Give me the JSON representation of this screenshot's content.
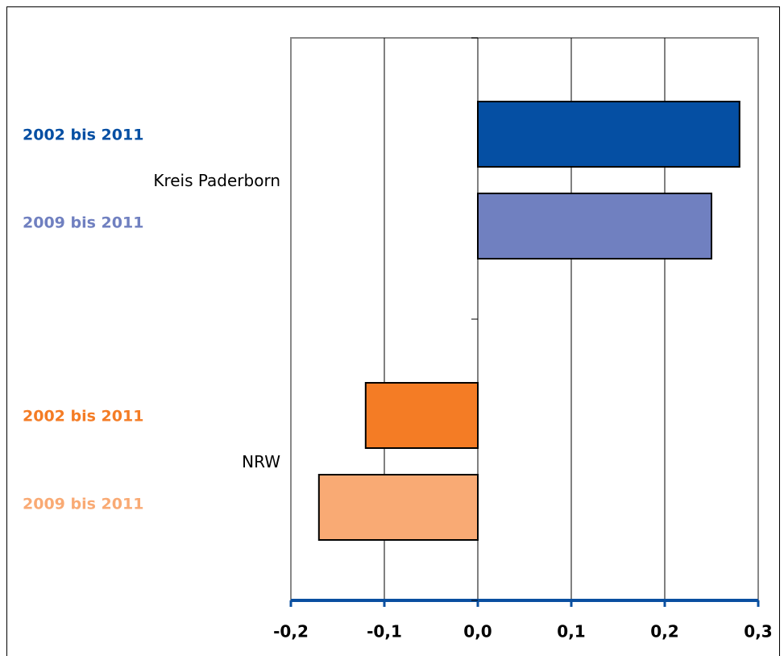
{
  "chart_data": {
    "type": "hbar",
    "groups": [
      {
        "name": "Kreis Paderborn",
        "bars": [
          {
            "label": "2002 bis 2011",
            "value": 0.28,
            "color": "#054fa3"
          },
          {
            "label": "2009 bis 2011",
            "value": 0.25,
            "color": "#7080c0"
          }
        ]
      },
      {
        "name": "NRW",
        "bars": [
          {
            "label": "2002 bis 2011",
            "value": -0.12,
            "color": "#f47c25"
          },
          {
            "label": "2009 bis 2011",
            "value": -0.17,
            "color": "#f9aa74"
          }
        ]
      }
    ],
    "xlim": [
      -0.2,
      0.3
    ],
    "xticks": [
      {
        "value": -0.2,
        "label": "-0,2"
      },
      {
        "value": -0.1,
        "label": "-0,1"
      },
      {
        "value": 0,
        "label": "0,0"
      },
      {
        "value": 0.1,
        "label": "0,1"
      },
      {
        "value": 0.2,
        "label": "0,2"
      },
      {
        "value": 0.3,
        "label": "0,3"
      }
    ],
    "grid": true,
    "axis_color": "#0a4fa0"
  }
}
